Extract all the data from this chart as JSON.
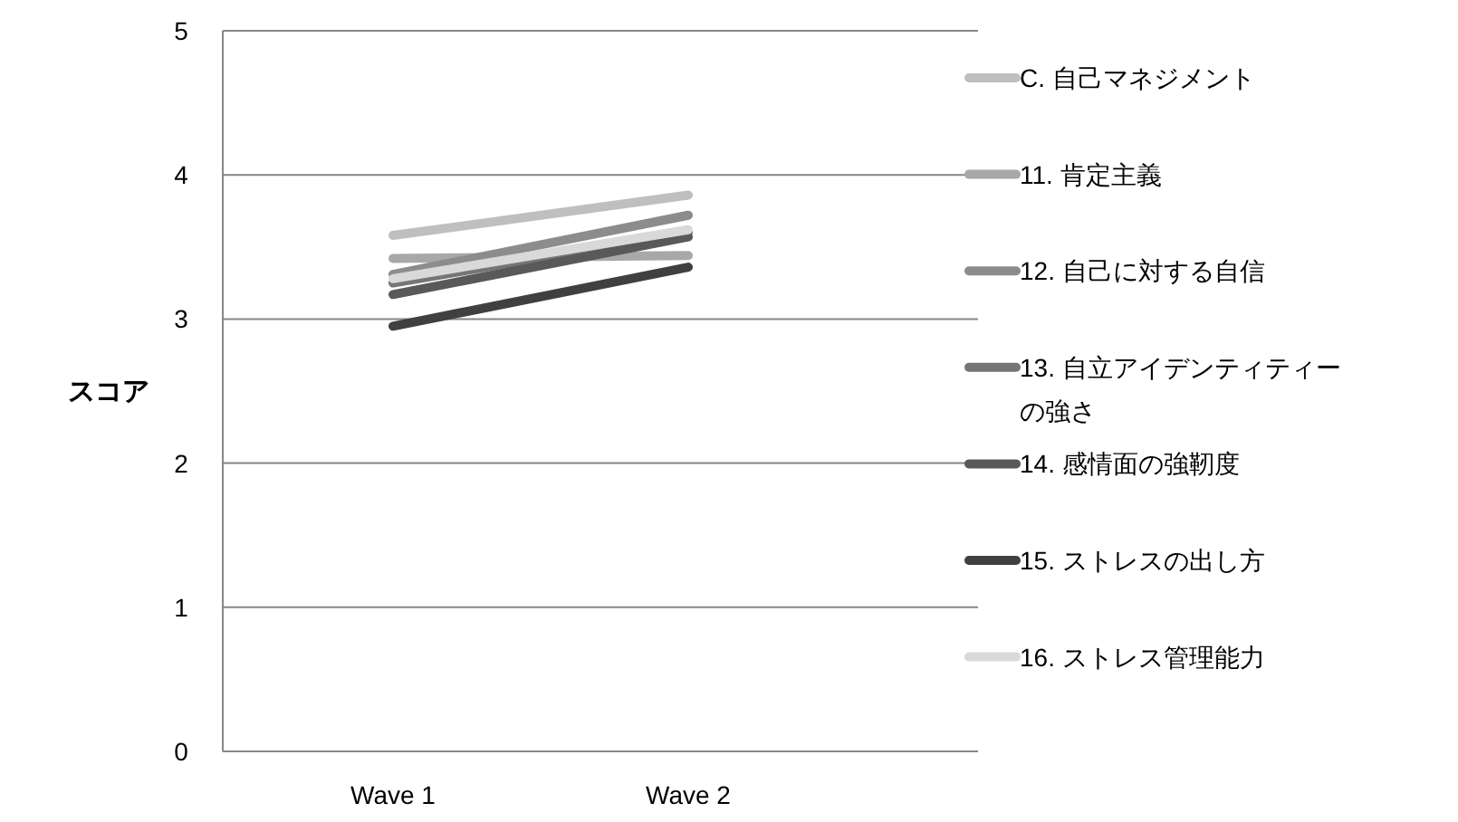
{
  "chart_data": {
    "type": "line",
    "ylabel": "スコア",
    "categories": [
      "Wave 1",
      "Wave 2"
    ],
    "ylim": [
      0,
      5
    ],
    "yticks": [
      0,
      1,
      2,
      3,
      4,
      5
    ],
    "grid": "y",
    "legend": "right",
    "marker": "none",
    "line_style": "solid",
    "series": [
      {
        "name": "C. 自己マネジメント",
        "color": "#bfbfbf",
        "values": [
          3.58,
          3.86
        ]
      },
      {
        "name": "11. 肯定主義",
        "color": "#a8a8a8",
        "values": [
          3.42,
          3.44
        ]
      },
      {
        "name": "12. 自己に対する自信",
        "color": "#8c8c8c",
        "values": [
          3.31,
          3.72
        ]
      },
      {
        "name": "13. 自立アイデンティティーの強さ",
        "color": "#757575",
        "values": [
          3.25,
          3.6
        ]
      },
      {
        "name": "14. 感情面の強靭度",
        "color": "#595959",
        "values": [
          3.17,
          3.57
        ]
      },
      {
        "name": "15. ストレスの出し方",
        "color": "#404040",
        "values": [
          2.95,
          3.36
        ]
      },
      {
        "name": "16. ストレス管理能力",
        "color": "#d9d9d9",
        "values": [
          3.28,
          3.62
        ]
      }
    ]
  }
}
